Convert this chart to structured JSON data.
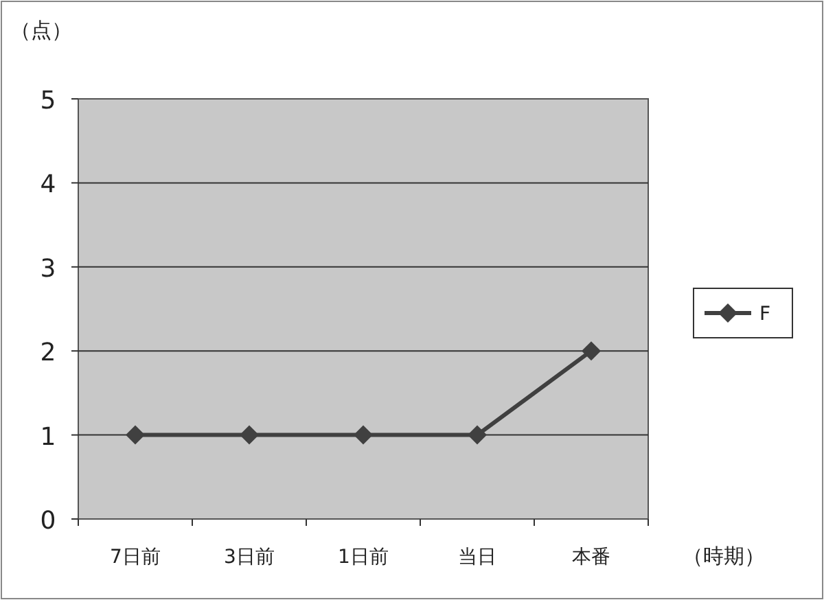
{
  "chart_data": {
    "type": "line",
    "ylabel": "（点）",
    "xlabel": "（時期）",
    "categories": [
      "7日前",
      "3日前",
      "1日前",
      "当日",
      "本番"
    ],
    "series": [
      {
        "name": "F",
        "color": "#404040",
        "values": [
          1,
          1,
          1,
          1,
          2
        ]
      }
    ],
    "ylim": [
      0,
      5
    ],
    "yticks": [
      0,
      1,
      2,
      3,
      4,
      5
    ],
    "grid": "y",
    "legend": "right",
    "marker": "diamond",
    "line_style": "solid"
  }
}
